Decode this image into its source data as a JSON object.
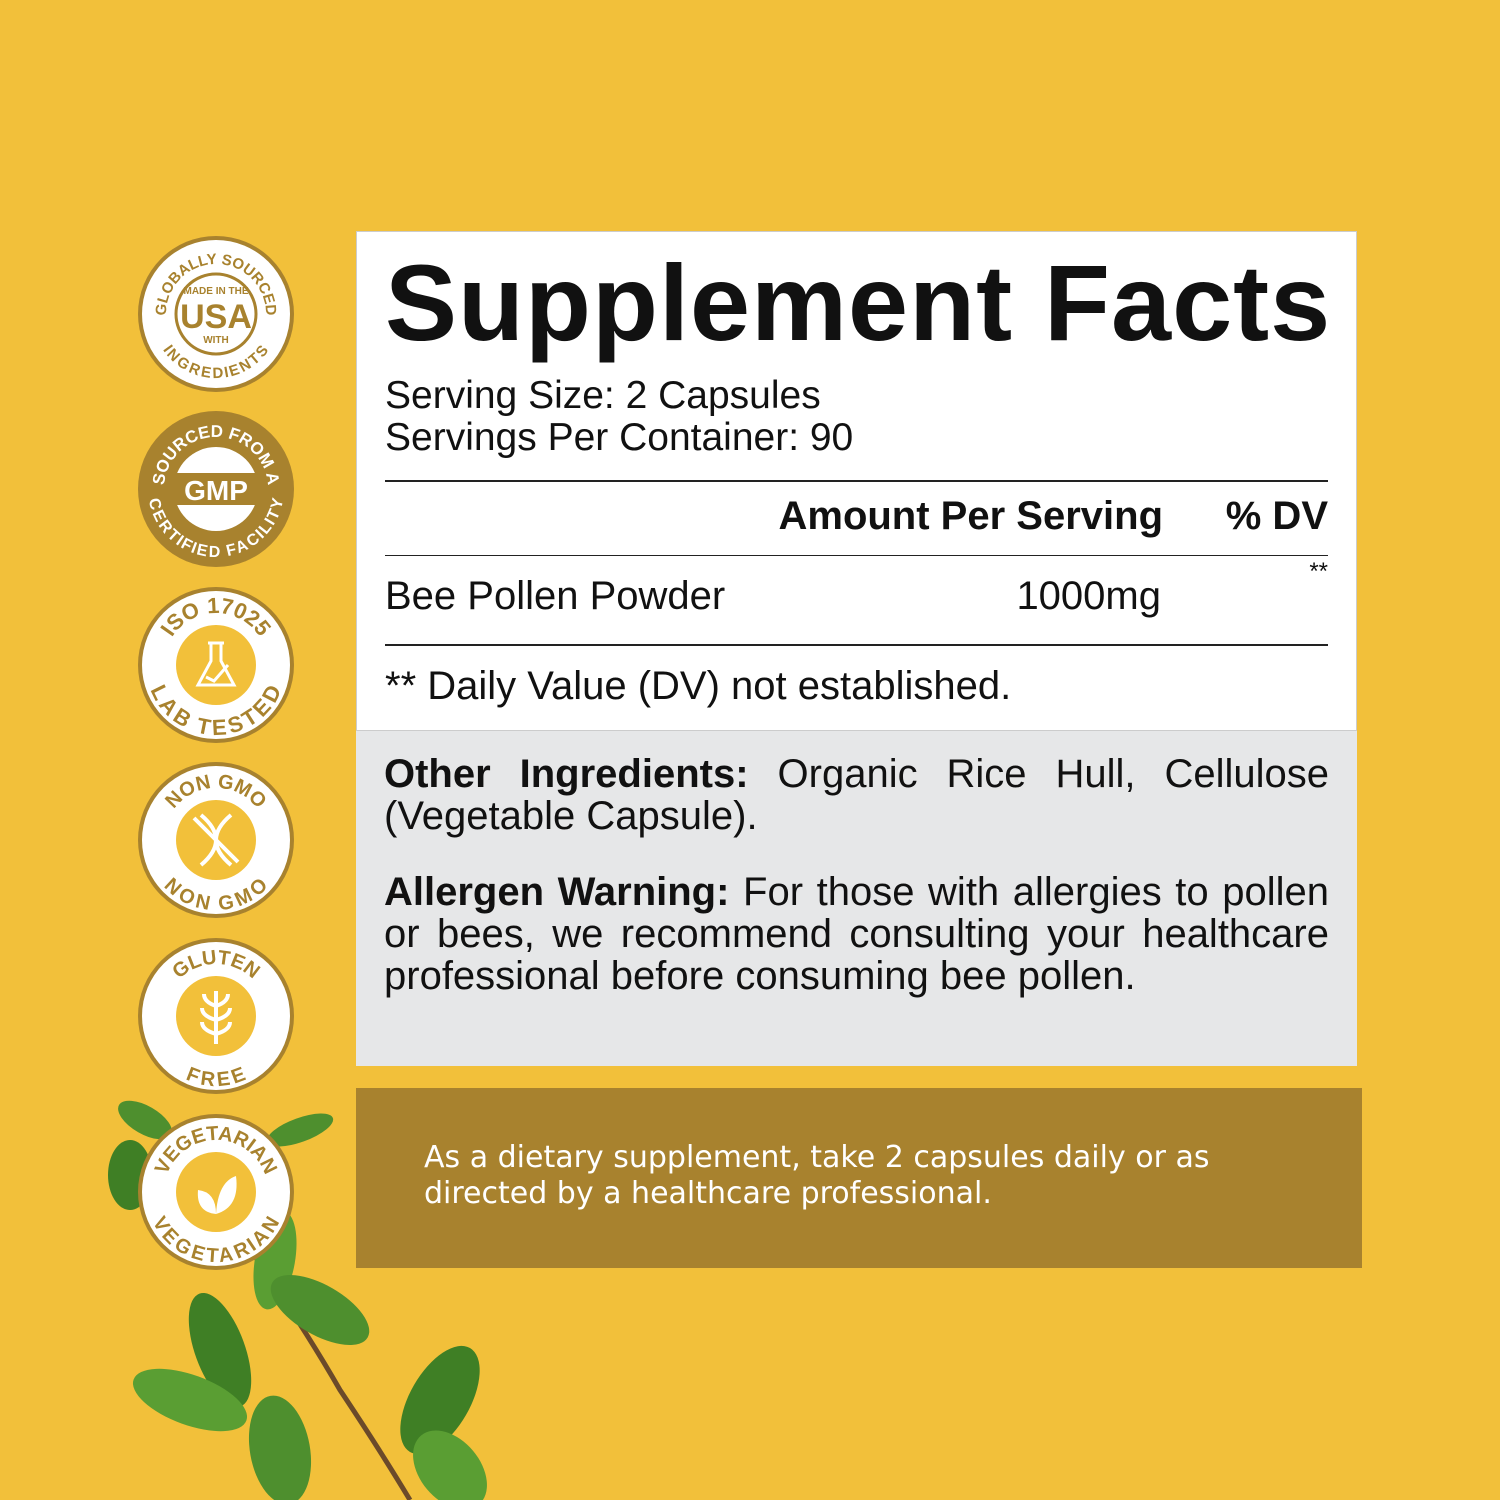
{
  "badges": [
    {
      "top": "GLOBALLY SOURCED",
      "bottom": "INGREDIENTS",
      "line1": "MADE IN THE",
      "main": "USA",
      "line2": "WITH"
    },
    {
      "top": "SOURCED FROM A",
      "bottom": "CERTIFIED FACILITY",
      "main": "GMP"
    },
    {
      "top": "ISO 17025",
      "bottom": "LAB TESTED"
    },
    {
      "top": "NON GMO",
      "bottom": "NON GMO"
    },
    {
      "top": "GLUTEN",
      "bottom": "FREE"
    },
    {
      "top": "VEGETARIAN",
      "bottom": "VEGETARIAN"
    }
  ],
  "facts": {
    "title": "Supplement Facts",
    "serving_size": "Serving Size: 2 Capsules",
    "servings_per_container": "Servings Per Container: 90",
    "col_amount": "Amount Per Serving",
    "col_dv": "% DV",
    "ingredient": {
      "name": "Bee Pollen Powder",
      "amount": "1000mg",
      "dv": "**"
    },
    "footnote": "** Daily Value (DV) not established."
  },
  "other": {
    "ingredients_label": "Other Ingredients:",
    "ingredients": "Organic Rice Hull, Cellulose (Vegetable Capsule).",
    "allergen_label": "Allergen Warning:",
    "allergen": "For those with allergies to pollen or bees, we recommend consulting your healthcare professional before consuming bee pollen."
  },
  "directions": "As a dietary supplement, take 2 capsules daily or as directed by a healthcare professional.",
  "colors": {
    "background": "#F2C03A",
    "gold": "#A8822E",
    "panel": "#E6E7E8",
    "leaf": "#4E8F2E"
  }
}
